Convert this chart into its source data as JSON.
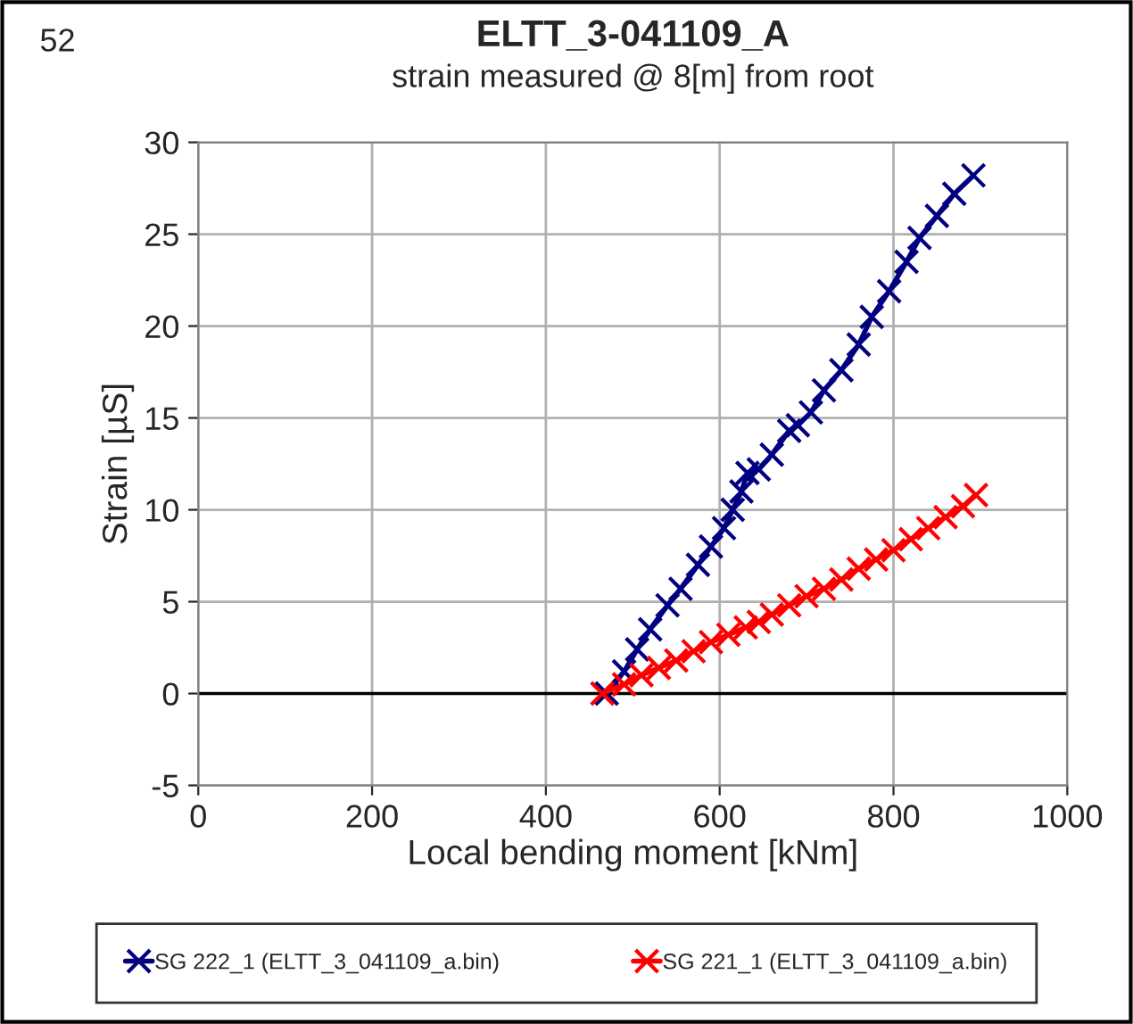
{
  "chart_data": {
    "type": "line",
    "title": "ELTT_3-041109_A",
    "subtitle": "strain measured @ 8[m] from root",
    "xlabel": "Local bending moment [kNm]",
    "ylabel": "Strain [µS]",
    "annotations": [
      "52"
    ],
    "xlim": [
      0,
      1000
    ],
    "xticks": [
      0,
      200,
      400,
      600,
      800,
      1000
    ],
    "ylim": [
      -5,
      30
    ],
    "yticks": [
      -5,
      0,
      5,
      10,
      15,
      20,
      25,
      30
    ],
    "grid": true,
    "legend": "bottom",
    "marker": "cross",
    "line_style": "solid",
    "ref_lines": [
      {
        "axis": "y",
        "value": 0,
        "color": "#000000"
      }
    ],
    "series": [
      {
        "name": "SG 222_1 (ELTT_3_041109_a.bin)",
        "color": "#000080",
        "x": [
          470,
          490,
          505,
          520,
          540,
          555,
          575,
          590,
          605,
          615,
          625,
          632,
          645,
          660,
          680,
          690,
          705,
          720,
          740,
          760,
          775,
          795,
          815,
          830,
          850,
          870,
          892
        ],
        "values": [
          0,
          1.2,
          2.4,
          3.5,
          4.8,
          5.7,
          7,
          8,
          9,
          10,
          11,
          12,
          12.2,
          13,
          14.3,
          14.6,
          15.3,
          16.5,
          17.6,
          19,
          20.5,
          21.9,
          23.5,
          24.8,
          26,
          27.2,
          28.2
        ]
      },
      {
        "name": "SG 221_1 (ELTT_3_041109_a.bin)",
        "color": "#ff0000",
        "x": [
          465,
          490,
          510,
          530,
          550,
          570,
          590,
          610,
          630,
          645,
          660,
          680,
          700,
          720,
          740,
          760,
          780,
          800,
          820,
          840,
          860,
          880,
          895
        ],
        "values": [
          0,
          0.5,
          1,
          1.4,
          1.8,
          2.3,
          2.8,
          3.2,
          3.6,
          3.9,
          4.3,
          4.8,
          5.3,
          5.7,
          6.2,
          6.8,
          7.3,
          7.8,
          8.4,
          9,
          9.6,
          10.2,
          10.8
        ]
      }
    ]
  }
}
